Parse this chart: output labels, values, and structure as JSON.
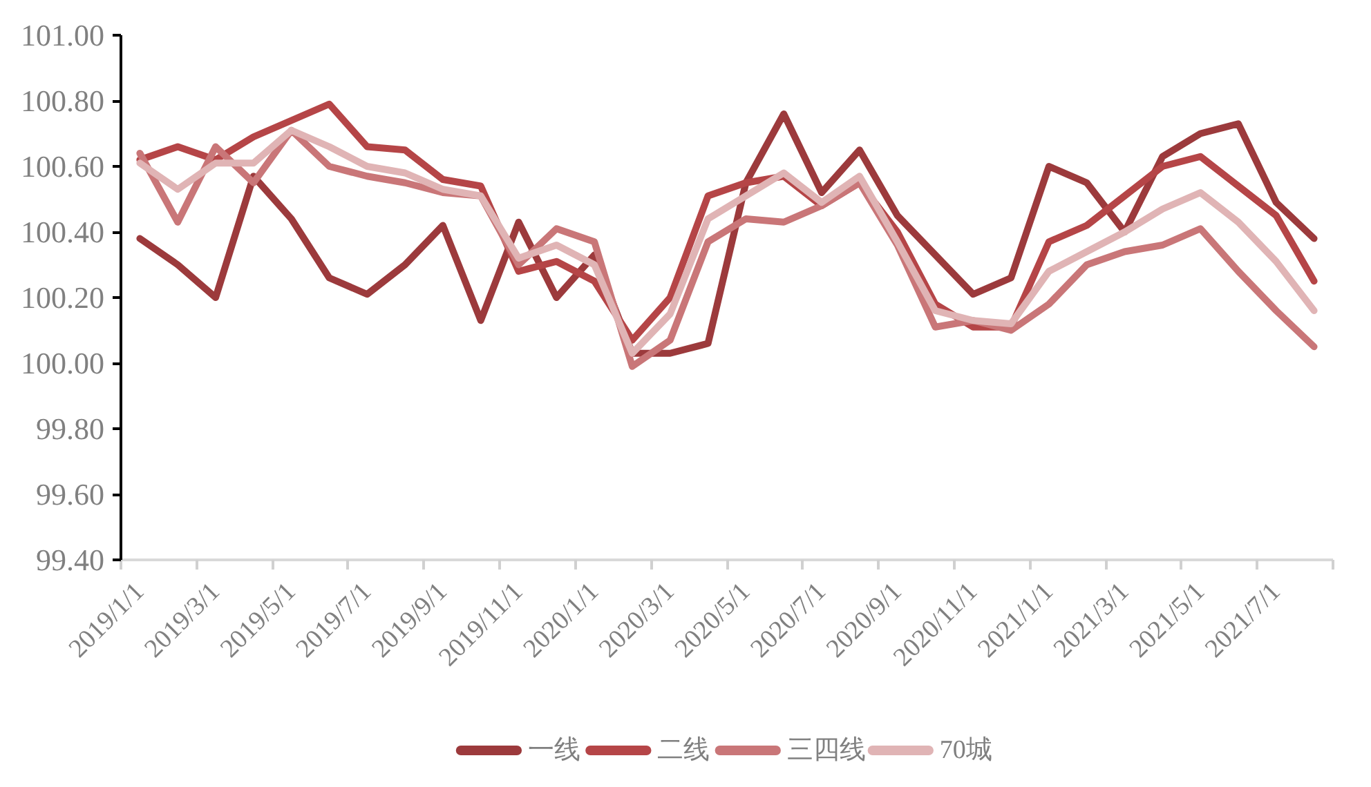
{
  "chart_data": {
    "type": "line",
    "categories": [
      "2019/1/1",
      null,
      "2019/3/1",
      null,
      "2019/5/1",
      null,
      "2019/7/1",
      null,
      "2019/9/1",
      null,
      "2019/11/1",
      null,
      "2020/1/1",
      null,
      "2020/3/1",
      null,
      "2020/5/1",
      null,
      "2020/7/1",
      null,
      "2020/9/1",
      null,
      "2020/11/1",
      null,
      "2021/1/1",
      null,
      "2021/3/1",
      null,
      "2021/5/1",
      null,
      "2021/7/1",
      null
    ],
    "series": [
      {
        "name": "一线",
        "color": "#9c3a3c",
        "values": [
          100.38,
          100.3,
          100.2,
          100.57,
          100.44,
          100.26,
          100.21,
          100.3,
          100.42,
          100.13,
          100.43,
          100.2,
          100.33,
          100.03,
          100.03,
          100.06,
          100.55,
          100.76,
          100.52,
          100.65,
          100.45,
          100.33,
          100.21,
          100.26,
          100.6,
          100.55,
          100.4,
          100.63,
          100.7,
          100.73,
          100.49,
          100.38
        ]
      },
      {
        "name": "二线",
        "color": "#b54547",
        "values": [
          100.62,
          100.66,
          100.62,
          100.69,
          100.74,
          100.79,
          100.66,
          100.65,
          100.56,
          100.54,
          100.28,
          100.31,
          100.25,
          100.07,
          100.2,
          100.51,
          100.55,
          100.57,
          100.48,
          100.55,
          100.4,
          100.18,
          100.11,
          100.11,
          100.37,
          100.42,
          100.51,
          100.6,
          100.63,
          100.54,
          100.45,
          100.25
        ]
      },
      {
        "name": "三四线",
        "color": "#c97678",
        "values": [
          100.64,
          100.43,
          100.66,
          100.55,
          100.71,
          100.6,
          100.57,
          100.55,
          100.52,
          100.51,
          100.3,
          100.41,
          100.37,
          99.99,
          100.07,
          100.37,
          100.44,
          100.43,
          100.48,
          100.55,
          100.36,
          100.11,
          100.13,
          100.1,
          100.18,
          100.3,
          100.34,
          100.36,
          100.41,
          100.28,
          100.16,
          100.05
        ]
      },
      {
        "name": "70城",
        "color": "#e0b4b5",
        "values": [
          100.61,
          100.53,
          100.61,
          100.61,
          100.71,
          100.66,
          100.6,
          100.58,
          100.53,
          100.51,
          100.32,
          100.36,
          100.3,
          100.03,
          100.15,
          100.44,
          100.51,
          100.58,
          100.49,
          100.57,
          100.37,
          100.16,
          100.13,
          100.12,
          100.28,
          100.34,
          100.4,
          100.47,
          100.52,
          100.43,
          100.31,
          100.16
        ]
      }
    ],
    "ylim": [
      99.4,
      101.0
    ],
    "yticks": [
      {
        "value": 99.4,
        "label": "99.40"
      },
      {
        "value": 99.6,
        "label": "99.60"
      },
      {
        "value": 99.8,
        "label": "99.80"
      },
      {
        "value": 100.0,
        "label": "100.00"
      },
      {
        "value": 100.2,
        "label": "100.20"
      },
      {
        "value": 100.4,
        "label": "100.40"
      },
      {
        "value": 100.6,
        "label": "100.60"
      },
      {
        "value": 100.8,
        "label": "100.80"
      },
      {
        "value": 101.0,
        "label": "101.00"
      }
    ],
    "grid": false,
    "legend": "bottom",
    "line_style": "solid"
  }
}
